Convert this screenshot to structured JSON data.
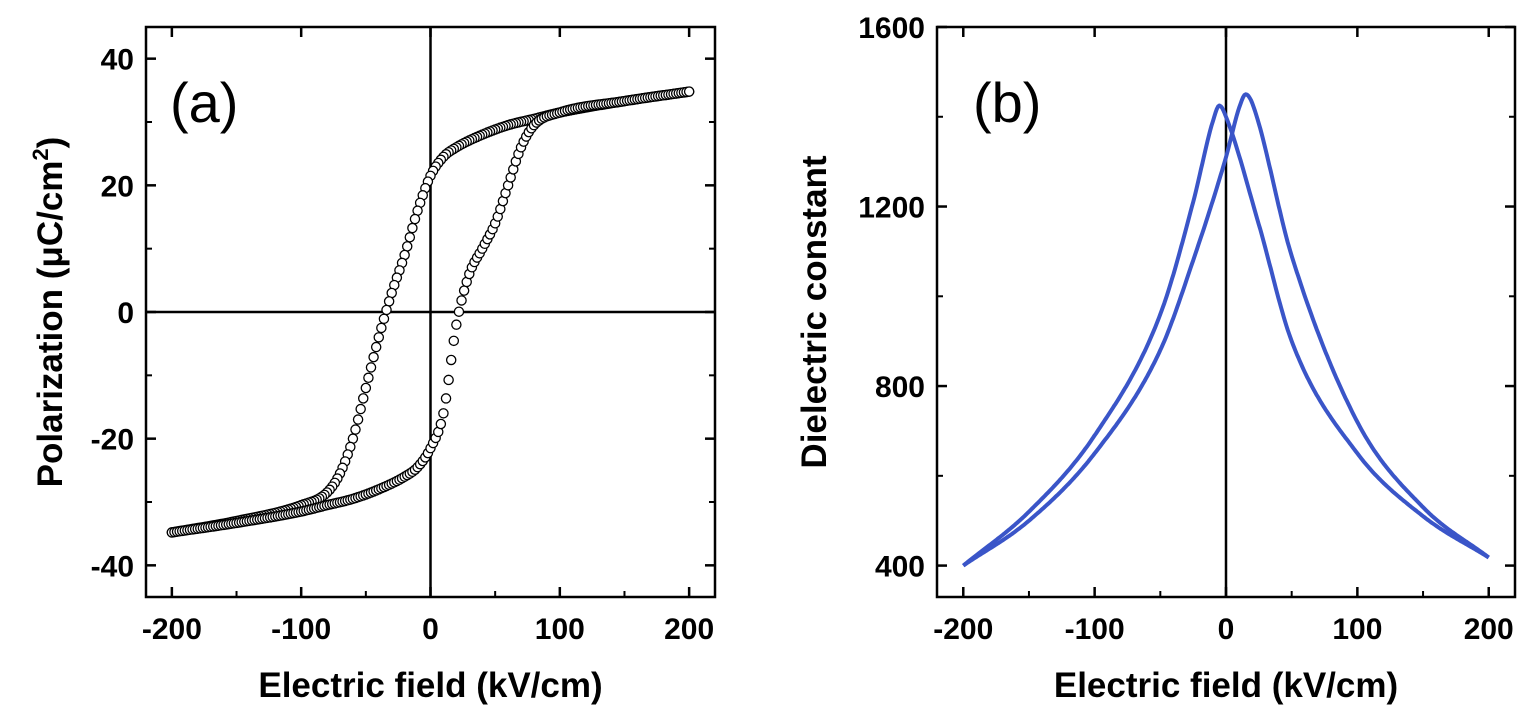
{
  "chart_data": [
    {
      "panel": "(a)",
      "type": "scatter",
      "marker": "open-circle",
      "marker_color": "#000000",
      "xlabel": "Electric field (kV/cm)",
      "ylabel": "Polarization (μC/cm²)",
      "ylabel_text": "Polarization (μC/cm",
      "ylabel_superscript": "2",
      "ylabel_suffix": ")",
      "xlim": [
        -220,
        220
      ],
      "ylim": [
        -45,
        45
      ],
      "xticks": [
        -200,
        -100,
        0,
        100,
        200
      ],
      "xtick_labels": [
        "-200",
        "-100",
        "0",
        "100",
        "200"
      ],
      "yticks": [
        -40,
        -20,
        0,
        20,
        40
      ],
      "ytick_labels": [
        "-40",
        "-20",
        "0",
        "20",
        "40"
      ],
      "grid": false,
      "zero_lines": true,
      "series": [
        {
          "branch": "descending",
          "x": [
            200,
            150,
            100,
            80,
            60,
            40,
            20,
            10,
            0,
            -10,
            -20,
            -30,
            -40,
            -50,
            -60,
            -70,
            -80,
            -100,
            -150,
            -200
          ],
          "y": [
            34.8,
            33.3,
            31.5,
            30.5,
            29.5,
            28.0,
            26.0,
            24.5,
            21.5,
            16.0,
            9.0,
            3.0,
            -4.0,
            -12.0,
            -20.0,
            -25.5,
            -28.5,
            -30.5,
            -33.0,
            -34.8
          ]
        },
        {
          "branch": "ascending",
          "x": [
            -200,
            -150,
            -100,
            -80,
            -60,
            -40,
            -20,
            -10,
            0,
            10,
            20,
            30,
            40,
            50,
            60,
            70,
            80,
            100,
            150,
            200
          ],
          "y": [
            -34.8,
            -33.3,
            -31.5,
            -30.5,
            -29.5,
            -28.0,
            -26.0,
            -24.5,
            -21.5,
            -16.0,
            -2.0,
            6.0,
            10.0,
            14.0,
            20.0,
            26.0,
            29.5,
            31.5,
            33.3,
            34.8
          ]
        }
      ]
    },
    {
      "panel": "(b)",
      "type": "line",
      "line_color": "#3a55c8",
      "xlabel": "Electric field (kV/cm)",
      "ylabel": "Dielectric constant",
      "xlim": [
        -220,
        220
      ],
      "ylim": [
        330,
        1600
      ],
      "xticks": [
        -200,
        -100,
        0,
        100,
        200
      ],
      "xtick_labels": [
        "-200",
        "-100",
        "0",
        "100",
        "200"
      ],
      "yticks": [
        400,
        800,
        1200,
        1600
      ],
      "ytick_labels": [
        "400",
        "800",
        "1200",
        "1600"
      ],
      "grid": false,
      "zero_line_x": true,
      "series": [
        {
          "branch": "peak-left",
          "x": [
            -200,
            -150,
            -100,
            -50,
            -25,
            -10,
            -5,
            0,
            25,
            50,
            100,
            150,
            200
          ],
          "y": [
            400,
            520,
            690,
            960,
            1210,
            1390,
            1425,
            1400,
            1160,
            900,
            650,
            510,
            418
          ]
        },
        {
          "branch": "peak-right",
          "x": [
            -200,
            -150,
            -100,
            -50,
            -25,
            0,
            10,
            15,
            20,
            50,
            100,
            150,
            200
          ],
          "y": [
            400,
            500,
            650,
            880,
            1080,
            1310,
            1420,
            1450,
            1430,
            1090,
            720,
            530,
            418
          ]
        }
      ]
    }
  ]
}
